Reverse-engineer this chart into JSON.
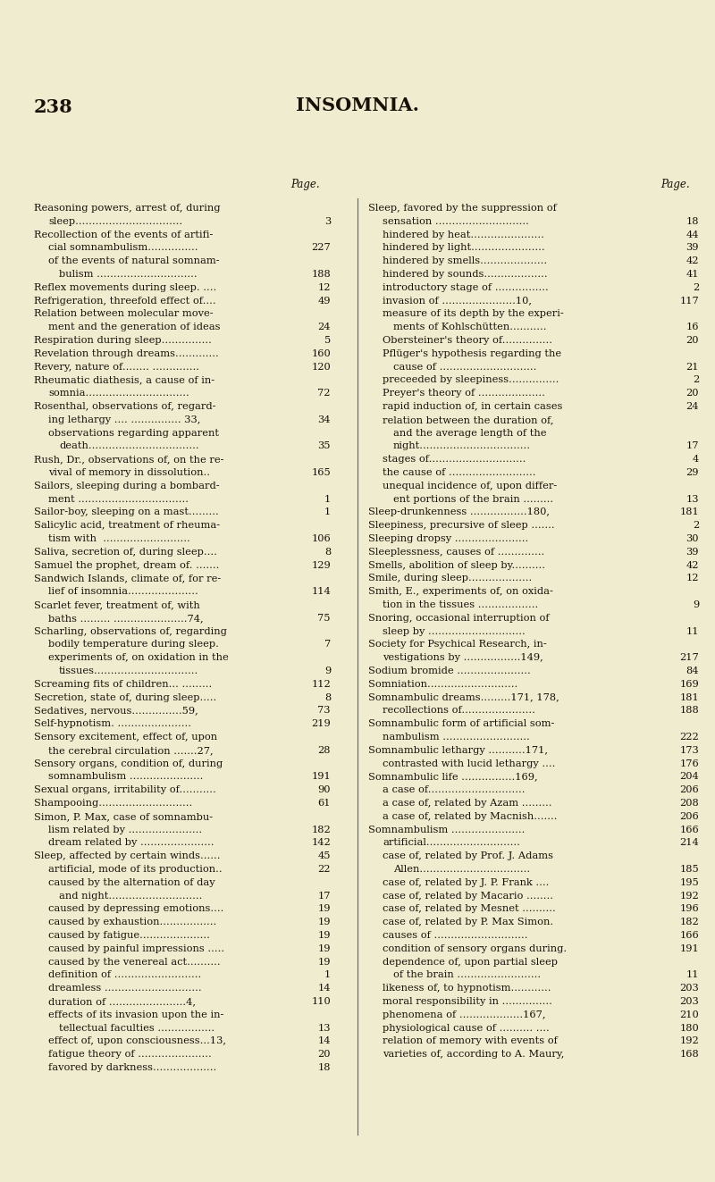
{
  "bg_color": "#f0ecd0",
  "text_color": "#1a1008",
  "page_number": "238",
  "title": "INSOMNIA.",
  "col_header": "Page.",
  "fig_width": 8.0,
  "fig_height": 13.23,
  "dpi": 100,
  "left_col_lines": [
    {
      "text": "Reasoning powers, arrest of, during",
      "indent": 0,
      "num": null
    },
    {
      "text": "sleep................................",
      "indent": 1,
      "num": "3"
    },
    {
      "text": "Recollection of the events of artifi-",
      "indent": 0,
      "num": null
    },
    {
      "text": "cial somnambulism...............",
      "indent": 1,
      "num": "227"
    },
    {
      "text": "of the events of natural somnam-",
      "indent": 1,
      "num": null
    },
    {
      "text": "bulism ..............................",
      "indent": 2,
      "num": "188"
    },
    {
      "text": "Reflex movements during sleep. ....",
      "indent": 0,
      "num": "12"
    },
    {
      "text": "Refrigeration, threefold effect of....",
      "indent": 0,
      "num": "49"
    },
    {
      "text": "Relation between molecular move-",
      "indent": 0,
      "num": null
    },
    {
      "text": "ment and the generation of ideas",
      "indent": 1,
      "num": "24"
    },
    {
      "text": "Respiration during sleep...............",
      "indent": 0,
      "num": "5"
    },
    {
      "text": "Revelation through dreams.............",
      "indent": 0,
      "num": "160"
    },
    {
      "text": "Revery, nature of........ ..............",
      "indent": 0,
      "num": "120"
    },
    {
      "text": "Rheumatic diathesis, a cause of in-",
      "indent": 0,
      "num": null
    },
    {
      "text": "somnia...............................",
      "indent": 1,
      "num": "72"
    },
    {
      "text": "Rosenthal, observations of, regard-",
      "indent": 0,
      "num": null
    },
    {
      "text": "ing lethargy .... ............... 33,",
      "indent": 1,
      "num": "34"
    },
    {
      "text": "observations regarding apparent",
      "indent": 1,
      "num": null
    },
    {
      "text": "death.................................",
      "indent": 2,
      "num": "35"
    },
    {
      "text": "Rush, Dr., observations of, on the re-",
      "indent": 0,
      "num": null
    },
    {
      "text": "vival of memory in dissolution..",
      "indent": 1,
      "num": "165"
    },
    {
      "text": "Sailors, sleeping during a bombard-",
      "indent": 0,
      "num": null
    },
    {
      "text": "ment .................................",
      "indent": 1,
      "num": "1"
    },
    {
      "text": "Sailor-boy, sleeping on a mast.........",
      "indent": 0,
      "num": "1"
    },
    {
      "text": "Salicylic acid, treatment of rheuma-",
      "indent": 0,
      "num": null
    },
    {
      "text": "tism with  ..........................",
      "indent": 1,
      "num": "106"
    },
    {
      "text": "Saliva, secretion of, during sleep....",
      "indent": 0,
      "num": "8"
    },
    {
      "text": "Samuel the prophet, dream of. .......",
      "indent": 0,
      "num": "129"
    },
    {
      "text": "Sandwich Islands, climate of, for re-",
      "indent": 0,
      "num": null
    },
    {
      "text": "lief of insomnia.....................",
      "indent": 1,
      "num": "114"
    },
    {
      "text": "Scarlet fever, treatment of, with",
      "indent": 0,
      "num": null
    },
    {
      "text": "baths ......... ......................74,",
      "indent": 1,
      "num": "75"
    },
    {
      "text": "Scharling, observations of, regarding",
      "indent": 0,
      "num": null
    },
    {
      "text": "bodily temperature during sleep.",
      "indent": 1,
      "num": "7"
    },
    {
      "text": "experiments of, on oxidation in the",
      "indent": 1,
      "num": null
    },
    {
      "text": "tissues...............................",
      "indent": 2,
      "num": "9"
    },
    {
      "text": "Screaming fits of children... .........",
      "indent": 0,
      "num": "112"
    },
    {
      "text": "Secretion, state of, during sleep.....",
      "indent": 0,
      "num": "8"
    },
    {
      "text": "Sedatives, nervous...............59,",
      "indent": 0,
      "num": "73"
    },
    {
      "text": "Self-hypnotism. ......................",
      "indent": 0,
      "num": "219"
    },
    {
      "text": "Sensory excitement, effect of, upon",
      "indent": 0,
      "num": null
    },
    {
      "text": "the cerebral circulation .......27,",
      "indent": 1,
      "num": "28"
    },
    {
      "text": "Sensory organs, condition of, during",
      "indent": 0,
      "num": null
    },
    {
      "text": "somnambulism ......................",
      "indent": 1,
      "num": "191"
    },
    {
      "text": "Sexual organs, irritability of...........",
      "indent": 0,
      "num": "90"
    },
    {
      "text": "Shampooing............................",
      "indent": 0,
      "num": "61"
    },
    {
      "text": "Simon, P. Max, case of somnambu-",
      "indent": 0,
      "num": null
    },
    {
      "text": "lism related by ......................",
      "indent": 1,
      "num": "182"
    },
    {
      "text": "dream related by ......................",
      "indent": 1,
      "num": "142"
    },
    {
      "text": "Sleep, affected by certain winds......",
      "indent": 0,
      "num": "45"
    },
    {
      "text": "artificial, mode of its production..",
      "indent": 1,
      "num": "22"
    },
    {
      "text": "caused by the alternation of day",
      "indent": 1,
      "num": null
    },
    {
      "text": "and night............................",
      "indent": 2,
      "num": "17"
    },
    {
      "text": "caused by depressing emotions....",
      "indent": 1,
      "num": "19"
    },
    {
      "text": "caused by exhaustion.................",
      "indent": 1,
      "num": "19"
    },
    {
      "text": "caused by fatigue.....................",
      "indent": 1,
      "num": "19"
    },
    {
      "text": "caused by painful impressions .....",
      "indent": 1,
      "num": "19"
    },
    {
      "text": "caused by the venereal act..........",
      "indent": 1,
      "num": "19"
    },
    {
      "text": "definition of ..........................",
      "indent": 1,
      "num": "1"
    },
    {
      "text": "dreamless .............................",
      "indent": 1,
      "num": "14"
    },
    {
      "text": "duration of .......................4,",
      "indent": 1,
      "num": "110"
    },
    {
      "text": "effects of its invasion upon the in-",
      "indent": 1,
      "num": null
    },
    {
      "text": "tellectual faculties .................",
      "indent": 2,
      "num": "13"
    },
    {
      "text": "effect of, upon consciousness...13,",
      "indent": 1,
      "num": "14"
    },
    {
      "text": "fatigue theory of ......................",
      "indent": 1,
      "num": "20"
    },
    {
      "text": "favored by darkness...................",
      "indent": 1,
      "num": "18"
    }
  ],
  "right_col_lines": [
    {
      "text": "Sleep, favored by the suppression of",
      "indent": 0,
      "num": null
    },
    {
      "text": "sensation ............................",
      "indent": 1,
      "num": "18"
    },
    {
      "text": "hindered by heat......................",
      "indent": 1,
      "num": "44"
    },
    {
      "text": "hindered by light......................",
      "indent": 1,
      "num": "39"
    },
    {
      "text": "hindered by smells....................",
      "indent": 1,
      "num": "42"
    },
    {
      "text": "hindered by sounds...................",
      "indent": 1,
      "num": "41"
    },
    {
      "text": "introductory stage of ................",
      "indent": 1,
      "num": "2"
    },
    {
      "text": "invasion of ......................10,",
      "indent": 1,
      "num": "117"
    },
    {
      "text": "measure of its depth by the experi-",
      "indent": 1,
      "num": null
    },
    {
      "text": "ments of Kohlschütten...........",
      "indent": 2,
      "num": "16"
    },
    {
      "text": "Obersteiner's theory of...............",
      "indent": 1,
      "num": "20"
    },
    {
      "text": "Pflüger's hypothesis regarding the",
      "indent": 1,
      "num": null
    },
    {
      "text": "cause of .............................",
      "indent": 2,
      "num": "21"
    },
    {
      "text": "preceeded by sleepiness...............",
      "indent": 1,
      "num": "2"
    },
    {
      "text": "Preyer's theory of ....................",
      "indent": 1,
      "num": "20"
    },
    {
      "text": "rapid induction of, in certain cases",
      "indent": 1,
      "num": "24"
    },
    {
      "text": "relation between the duration of,",
      "indent": 1,
      "num": null
    },
    {
      "text": "and the average length of the",
      "indent": 2,
      "num": null
    },
    {
      "text": "night.................................",
      "indent": 2,
      "num": "17"
    },
    {
      "text": "stages of.............................",
      "indent": 1,
      "num": "4"
    },
    {
      "text": "the cause of ..........................",
      "indent": 1,
      "num": "29"
    },
    {
      "text": "unequal incidence of, upon differ-",
      "indent": 1,
      "num": null
    },
    {
      "text": "ent portions of the brain .........",
      "indent": 2,
      "num": "13"
    },
    {
      "text": "Sleep-drunkenness .................180,",
      "indent": 0,
      "num": "181"
    },
    {
      "text": "Sleepiness, precursive of sleep .......",
      "indent": 0,
      "num": "2"
    },
    {
      "text": "Sleeping dropsy ......................",
      "indent": 0,
      "num": "30"
    },
    {
      "text": "Sleeplessness, causes of ..............",
      "indent": 0,
      "num": "39"
    },
    {
      "text": "Smells, abolition of sleep by..........",
      "indent": 0,
      "num": "42"
    },
    {
      "text": "Smile, during sleep...................",
      "indent": 0,
      "num": "12"
    },
    {
      "text": "Smith, E., experiments of, on oxida-",
      "indent": 0,
      "num": null
    },
    {
      "text": "tion in the tissues ..................",
      "indent": 1,
      "num": "9"
    },
    {
      "text": "Snoring, occasional interruption of",
      "indent": 0,
      "num": null
    },
    {
      "text": "sleep by .............................",
      "indent": 1,
      "num": "11"
    },
    {
      "text": "Society for Psychical Research, in-",
      "indent": 0,
      "num": null
    },
    {
      "text": "vestigations by .................149,",
      "indent": 1,
      "num": "217"
    },
    {
      "text": "Sodium bromide ......................",
      "indent": 0,
      "num": "84"
    },
    {
      "text": "Somniation...........................",
      "indent": 0,
      "num": "169"
    },
    {
      "text": "Somnambulic dreams.........171, 178,",
      "indent": 0,
      "num": "181"
    },
    {
      "text": "recollections of......................",
      "indent": 1,
      "num": "188"
    },
    {
      "text": "Somnambulic form of artificial som-",
      "indent": 0,
      "num": null
    },
    {
      "text": "nambulism ..........................",
      "indent": 1,
      "num": "222"
    },
    {
      "text": "Somnambulic lethargy ...........171,",
      "indent": 0,
      "num": "173"
    },
    {
      "text": "contrasted with lucid lethargy ....",
      "indent": 1,
      "num": "176"
    },
    {
      "text": "Somnambulic life ................169,",
      "indent": 0,
      "num": "204"
    },
    {
      "text": "a case of.............................",
      "indent": 1,
      "num": "206"
    },
    {
      "text": "a case of, related by Azam .........",
      "indent": 1,
      "num": "208"
    },
    {
      "text": "a case of, related by Macnish.......",
      "indent": 1,
      "num": "206"
    },
    {
      "text": "Somnambulism ......................",
      "indent": 0,
      "num": "166"
    },
    {
      "text": "artificial............................",
      "indent": 1,
      "num": "214"
    },
    {
      "text": "case of, related by Prof. J. Adams",
      "indent": 1,
      "num": null
    },
    {
      "text": "Allen.................................",
      "indent": 2,
      "num": "185"
    },
    {
      "text": "case of, related by J. P. Frank ....",
      "indent": 1,
      "num": "195"
    },
    {
      "text": "case of, related by Macario ........",
      "indent": 1,
      "num": "192"
    },
    {
      "text": "case of, related by Mesnet ..........",
      "indent": 1,
      "num": "196"
    },
    {
      "text": "case of, related by P. Max Simon.",
      "indent": 1,
      "num": "182"
    },
    {
      "text": "causes of ............................",
      "indent": 1,
      "num": "166"
    },
    {
      "text": "condition of sensory organs during.",
      "indent": 1,
      "num": "191"
    },
    {
      "text": "dependence of, upon partial sleep",
      "indent": 1,
      "num": null
    },
    {
      "text": "of the brain .........................",
      "indent": 2,
      "num": "11"
    },
    {
      "text": "likeness of, to hypnotism............",
      "indent": 1,
      "num": "203"
    },
    {
      "text": "moral responsibility in ...............",
      "indent": 1,
      "num": "203"
    },
    {
      "text": "phenomena of ...................167,",
      "indent": 1,
      "num": "210"
    },
    {
      "text": "physiological cause of .......... ....",
      "indent": 1,
      "num": "180"
    },
    {
      "text": "relation of memory with events of",
      "indent": 1,
      "num": "192"
    },
    {
      "text": "varieties of, according to A. Maury,",
      "indent": 1,
      "num": "168"
    }
  ]
}
